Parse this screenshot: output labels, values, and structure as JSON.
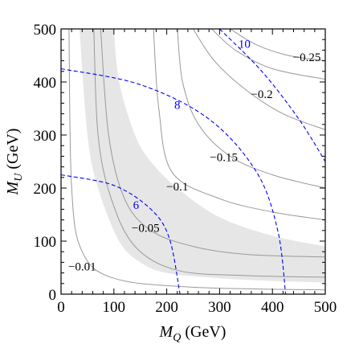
{
  "chart_data": {
    "type": "contour",
    "title": "",
    "xlabel": {
      "symbol": "M",
      "subscript": "Q",
      "unit": " (GeV)"
    },
    "ylabel": {
      "symbol": "M",
      "subscript": "U",
      "unit": " (GeV)"
    },
    "xlim": [
      0,
      500
    ],
    "ylim": [
      0,
      500
    ],
    "x_ticks": [
      0,
      100,
      200,
      300,
      400,
      500
    ],
    "y_ticks": [
      0,
      100,
      200,
      300,
      400,
      500
    ],
    "tick_labels_x": [
      "0",
      "100",
      "200",
      "300",
      "400",
      "500"
    ],
    "tick_labels_y": [
      "0",
      "100",
      "200",
      "300",
      "400",
      "500"
    ],
    "grid": false,
    "colors": {
      "solid_contour": "#999999",
      "dashed_contour": "#0000ff",
      "band": "#e6e6e6"
    },
    "band": {
      "description_values": "shaded region",
      "upper": [
        [
          100,
          500
        ],
        [
          110,
          400
        ],
        [
          140,
          300
        ],
        [
          170,
          250
        ],
        [
          220,
          200
        ],
        [
          300,
          145
        ],
        [
          400,
          110
        ],
        [
          500,
          90
        ]
      ],
      "lower": [
        [
          500,
          22
        ],
        [
          400,
          25
        ],
        [
          300,
          30
        ],
        [
          200,
          40
        ],
        [
          150,
          60
        ],
        [
          110,
          100
        ],
        [
          70,
          200
        ],
        [
          50,
          300
        ],
        [
          35,
          500
        ]
      ]
    },
    "solid_contours": [
      {
        "label": "−0.25",
        "label_pos": [
          465,
          447
        ],
        "points": [
          [
            320,
            500
          ],
          [
            370,
            470
          ],
          [
            430,
            450
          ],
          [
            500,
            440
          ]
        ]
      },
      {
        "label": "",
        "label_pos": null,
        "points": [
          [
            285,
            500
          ],
          [
            330,
            460
          ],
          [
            400,
            425
          ],
          [
            500,
            405
          ]
        ]
      },
      {
        "label": "−0.2",
        "label_pos": [
          380,
          377
        ],
        "points": [
          [
            250,
            500
          ],
          [
            290,
            440
          ],
          [
            350,
            385
          ],
          [
            420,
            340
          ],
          [
            500,
            310
          ]
        ]
      },
      {
        "label": "−0.15",
        "label_pos": [
          308,
          258
        ],
        "points": [
          [
            220,
            500
          ],
          [
            230,
            400
          ],
          [
            260,
            320
          ],
          [
            320,
            260
          ],
          [
            400,
            225
          ],
          [
            500,
            200
          ]
        ]
      },
      {
        "label": "−0.1",
        "label_pos": [
          220,
          203
        ],
        "points": [
          [
            175,
            500
          ],
          [
            185,
            350
          ],
          [
            210,
            230
          ],
          [
            300,
            180
          ],
          [
            400,
            155
          ],
          [
            500,
            140
          ]
        ]
      },
      {
        "label": "−0.05",
        "label_pos": [
          160,
          125
        ],
        "points": [
          [
            75,
            500
          ],
          [
            90,
            300
          ],
          [
            120,
            180
          ],
          [
            170,
            120
          ],
          [
            250,
            90
          ],
          [
            350,
            75
          ],
          [
            500,
            70
          ]
        ]
      },
      {
        "label": "",
        "label_pos": null,
        "points": [
          [
            62,
            500
          ],
          [
            70,
            300
          ],
          [
            95,
            180
          ],
          [
            140,
            90
          ],
          [
            220,
            45
          ],
          [
            350,
            35
          ],
          [
            500,
            32
          ]
        ]
      },
      {
        "label": "−0.01",
        "label_pos": [
          40,
          52
        ],
        "points": [
          [
            15,
            500
          ],
          [
            20,
            200
          ],
          [
            40,
            80
          ],
          [
            100,
            30
          ],
          [
            250,
            13
          ],
          [
            500,
            8
          ]
        ]
      }
    ],
    "dashed_contours": [
      {
        "label": "6",
        "label_pos": [
          142,
          168
        ],
        "points": [
          [
            0,
            225
          ],
          [
            100,
            205
          ],
          [
            170,
            160
          ],
          [
            205,
            105
          ],
          [
            225,
            0
          ]
        ]
      },
      {
        "label": "8",
        "label_pos": [
          220,
          357
        ],
        "points": [
          [
            0,
            425
          ],
          [
            150,
            395
          ],
          [
            280,
            330
          ],
          [
            370,
            230
          ],
          [
            410,
            120
          ],
          [
            425,
            0
          ]
        ]
      },
      {
        "label": "10",
        "label_pos": [
          347,
          472
        ],
        "points": [
          [
            300,
            500
          ],
          [
            380,
            420
          ],
          [
            450,
            330
          ],
          [
            500,
            250
          ]
        ]
      }
    ]
  }
}
